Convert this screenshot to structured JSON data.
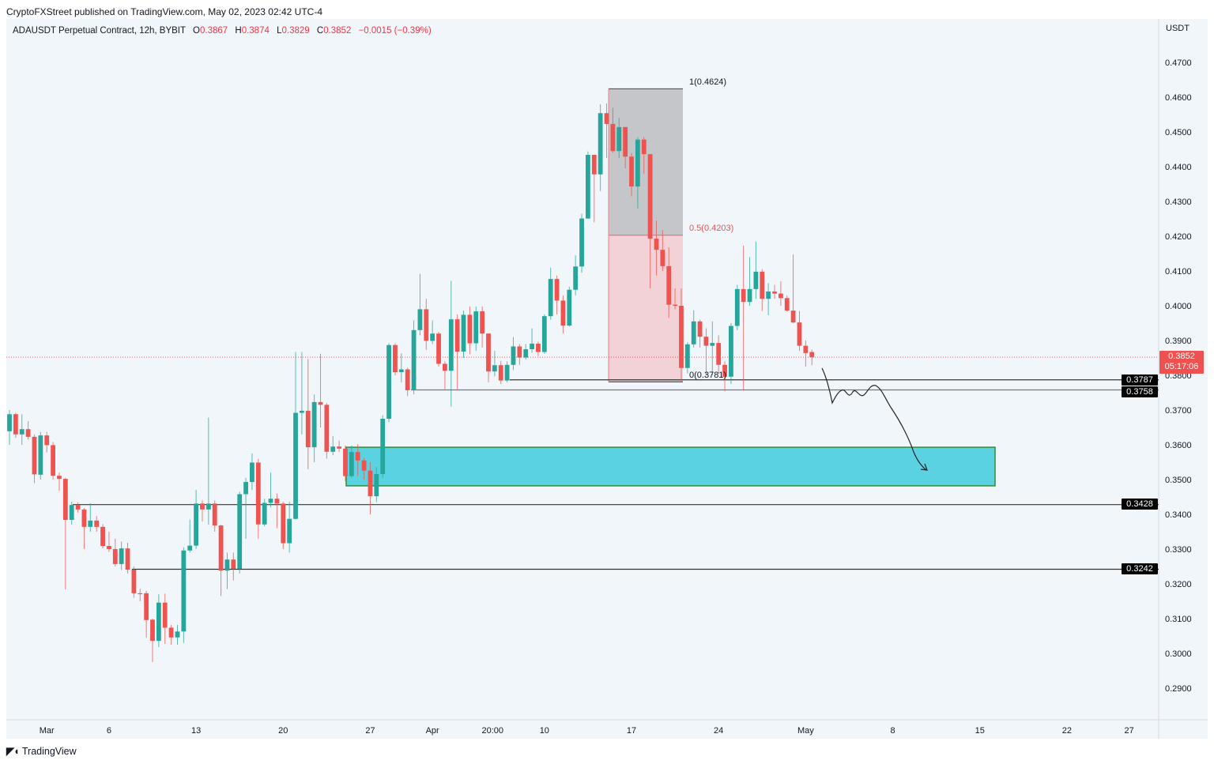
{
  "header": {
    "published": "CryptoFXStreet published on TradingView.com, May 02, 2023 02:42 UTC-4",
    "symbol": "ADAUSDT Perpetual Contract, 12h, BYBIT",
    "o_label": "O",
    "o": "0.3867",
    "h_label": "H",
    "h": "0.3874",
    "l_label": "L",
    "l": "0.3829",
    "c_label": "C",
    "c": "0.3852",
    "change": "−0.0015 (−0.39%)"
  },
  "price_axis": {
    "currency": "USDT",
    "last_price": "0.3852",
    "countdown": "05:17:06",
    "level_tags": [
      "0.3787",
      "0.3758",
      "0.3428",
      "0.3242"
    ]
  },
  "fib": {
    "level_1": "1(0.4624)",
    "level_05": "0.5(0.4203)",
    "level_0": "0(0.3781)"
  },
  "branding": {
    "logo_text": "TradingView"
  },
  "colors": {
    "up": "#26a69a",
    "down": "#ef5350",
    "zone_fill": "#5ad2e1",
    "zone_border": "#2f8f3a",
    "fib_upper": "#c4c6c9",
    "fib_lower": "#f2d1d7",
    "last_price": "#f0504f"
  },
  "chart_data": {
    "type": "candlestick",
    "interval": "12h",
    "ylim": [
      0.285,
      0.475
    ],
    "y_ticks": [
      "0.4700",
      "0.4600",
      "0.4500",
      "0.4400",
      "0.4300",
      "0.4200",
      "0.4100",
      "0.4000",
      "0.3900",
      "0.3800",
      "0.3700",
      "0.3600",
      "0.3500",
      "0.3400",
      "0.3300",
      "0.3200",
      "0.3100",
      "0.3000",
      "0.2900"
    ],
    "x_ticks": [
      {
        "label": "Mar",
        "date": "2023-03-01T00:00"
      },
      {
        "label": "6",
        "date": "2023-03-06T00:00"
      },
      {
        "label": "13",
        "date": "2023-03-13T00:00"
      },
      {
        "label": "20",
        "date": "2023-03-20T00:00"
      },
      {
        "label": "27",
        "date": "2023-03-27T00:00"
      },
      {
        "label": "Apr",
        "date": "2023-04-01T00:00"
      },
      {
        "label": "20:00",
        "date": "2023-04-05T20:00"
      },
      {
        "label": "10",
        "date": "2023-04-10T00:00"
      },
      {
        "label": "17",
        "date": "2023-04-17T00:00"
      },
      {
        "label": "24",
        "date": "2023-04-24T00:00"
      },
      {
        "label": "May",
        "date": "2023-05-01T00:00"
      },
      {
        "label": "8",
        "date": "2023-05-08T00:00"
      },
      {
        "label": "15",
        "date": "2023-05-15T00:00"
      },
      {
        "label": "22",
        "date": "2023-05-22T00:00"
      },
      {
        "label": "27",
        "date": "2023-05-27T00:00"
      }
    ],
    "ohlc": [
      [
        0.3639,
        0.37,
        0.36,
        0.3688
      ],
      [
        0.3688,
        0.3692,
        0.362,
        0.363
      ],
      [
        0.363,
        0.3688,
        0.36,
        0.3645
      ],
      [
        0.3645,
        0.3668,
        0.3615,
        0.3623
      ],
      [
        0.3623,
        0.363,
        0.349,
        0.3515
      ],
      [
        0.3514,
        0.3637,
        0.35,
        0.3627
      ],
      [
        0.3627,
        0.3637,
        0.3578,
        0.3599
      ],
      [
        0.3599,
        0.3608,
        0.35,
        0.3511
      ],
      [
        0.3511,
        0.352,
        0.3468,
        0.3502
      ],
      [
        0.3502,
        0.3505,
        0.3184,
        0.3384
      ],
      [
        0.3384,
        0.3436,
        0.337,
        0.3427
      ],
      [
        0.3427,
        0.3435,
        0.3405,
        0.3414
      ],
      [
        0.3414,
        0.3418,
        0.33,
        0.3364
      ],
      [
        0.3364,
        0.3432,
        0.335,
        0.3382
      ],
      [
        0.3382,
        0.3395,
        0.335,
        0.3364
      ],
      [
        0.3364,
        0.3372,
        0.3302,
        0.3309
      ],
      [
        0.3309,
        0.335,
        0.3292,
        0.33
      ],
      [
        0.33,
        0.333,
        0.325,
        0.3257
      ],
      [
        0.3257,
        0.3322,
        0.324,
        0.3302
      ],
      [
        0.3302,
        0.3318,
        0.323,
        0.3241
      ],
      [
        0.3241,
        0.325,
        0.316,
        0.3173
      ],
      [
        0.3173,
        0.3186,
        0.315,
        0.3172
      ],
      [
        0.3173,
        0.318,
        0.3045,
        0.3096
      ],
      [
        0.3097,
        0.31,
        0.2975,
        0.3036
      ],
      [
        0.3036,
        0.317,
        0.3018,
        0.3146
      ],
      [
        0.3146,
        0.3172,
        0.3027,
        0.3074
      ],
      [
        0.3074,
        0.3082,
        0.3025,
        0.3046
      ],
      [
        0.3046,
        0.3082,
        0.3025,
        0.3063
      ],
      [
        0.3063,
        0.3305,
        0.303,
        0.3296
      ],
      [
        0.3296,
        0.3385,
        0.329,
        0.331
      ],
      [
        0.331,
        0.347,
        0.33,
        0.3431
      ],
      [
        0.3431,
        0.344,
        0.338,
        0.3414
      ],
      [
        0.3414,
        0.3678,
        0.337,
        0.3431
      ],
      [
        0.3431,
        0.344,
        0.335,
        0.3368
      ],
      [
        0.3368,
        0.337,
        0.3165,
        0.3238
      ],
      [
        0.3238,
        0.329,
        0.3185,
        0.327
      ],
      [
        0.327,
        0.329,
        0.321,
        0.3243
      ],
      [
        0.3243,
        0.3465,
        0.323,
        0.3458
      ],
      [
        0.3458,
        0.3505,
        0.333,
        0.3493
      ],
      [
        0.3493,
        0.3575,
        0.347,
        0.3549
      ],
      [
        0.3549,
        0.356,
        0.333,
        0.3371
      ],
      [
        0.3371,
        0.3445,
        0.3365,
        0.3433
      ],
      [
        0.3433,
        0.352,
        0.342,
        0.3445
      ],
      [
        0.3445,
        0.346,
        0.336,
        0.3431
      ],
      [
        0.3431,
        0.3436,
        0.33,
        0.3317
      ],
      [
        0.3317,
        0.3436,
        0.329,
        0.3387
      ],
      [
        0.3387,
        0.3867,
        0.3385,
        0.3692
      ],
      [
        0.3692,
        0.3867,
        0.363,
        0.3698
      ],
      [
        0.3698,
        0.3847,
        0.353,
        0.3593
      ],
      [
        0.3593,
        0.3745,
        0.355,
        0.3723
      ],
      [
        0.3723,
        0.3862,
        0.365,
        0.3715
      ],
      [
        0.3715,
        0.372,
        0.356,
        0.358
      ],
      [
        0.358,
        0.3625,
        0.357,
        0.3595
      ],
      [
        0.3595,
        0.3612,
        0.358,
        0.3589
      ],
      [
        0.3589,
        0.3598,
        0.3495,
        0.351
      ],
      [
        0.351,
        0.3598,
        0.3505,
        0.3579
      ],
      [
        0.3579,
        0.3602,
        0.351,
        0.3555
      ],
      [
        0.3555,
        0.3562,
        0.35,
        0.3526
      ],
      [
        0.3526,
        0.355,
        0.34,
        0.3452
      ],
      [
        0.3452,
        0.3536,
        0.3435,
        0.3516
      ],
      [
        0.3516,
        0.3685,
        0.3505,
        0.3675
      ],
      [
        0.3675,
        0.3892,
        0.3665,
        0.3887
      ],
      [
        0.3887,
        0.3892,
        0.38,
        0.3809
      ],
      [
        0.3809,
        0.3863,
        0.378,
        0.3817
      ],
      [
        0.3817,
        0.3822,
        0.374,
        0.3757
      ],
      [
        0.3757,
        0.3958,
        0.3745,
        0.393
      ],
      [
        0.393,
        0.4092,
        0.3915,
        0.399
      ],
      [
        0.399,
        0.402,
        0.3873,
        0.3899
      ],
      [
        0.3899,
        0.3958,
        0.389,
        0.392
      ],
      [
        0.392,
        0.3925,
        0.3825,
        0.3833
      ],
      [
        0.3833,
        0.384,
        0.376,
        0.3813
      ],
      [
        0.3813,
        0.4072,
        0.371,
        0.3961
      ],
      [
        0.3961,
        0.3975,
        0.376,
        0.3868
      ],
      [
        0.3868,
        0.3986,
        0.385,
        0.3974
      ],
      [
        0.3974,
        0.3998,
        0.386,
        0.3892
      ],
      [
        0.3892,
        0.3998,
        0.387,
        0.3984
      ],
      [
        0.3984,
        0.3998,
        0.388,
        0.392
      ],
      [
        0.392,
        0.392,
        0.378,
        0.3811
      ],
      [
        0.3811,
        0.387,
        0.3797,
        0.3829
      ],
      [
        0.3829,
        0.3841,
        0.3775,
        0.3785
      ],
      [
        0.3785,
        0.384,
        0.378,
        0.383
      ],
      [
        0.383,
        0.391,
        0.3815,
        0.3883
      ],
      [
        0.3883,
        0.389,
        0.383,
        0.3851
      ],
      [
        0.3851,
        0.389,
        0.3845,
        0.3875
      ],
      [
        0.3875,
        0.3935,
        0.3865,
        0.3891
      ],
      [
        0.3891,
        0.3897,
        0.3855,
        0.3867
      ],
      [
        0.3867,
        0.3975,
        0.3862,
        0.397
      ],
      [
        0.397,
        0.411,
        0.396,
        0.4077
      ],
      [
        0.4077,
        0.4087,
        0.3975,
        0.4015
      ],
      [
        0.4015,
        0.403,
        0.392,
        0.3943
      ],
      [
        0.3943,
        0.4055,
        0.394,
        0.4046
      ],
      [
        0.4046,
        0.4145,
        0.403,
        0.4113
      ],
      [
        0.4113,
        0.4265,
        0.4095,
        0.4251
      ],
      [
        0.4251,
        0.4444,
        0.425,
        0.4434
      ],
      [
        0.4434,
        0.4434,
        0.424,
        0.4378
      ],
      [
        0.4378,
        0.458,
        0.433,
        0.4554
      ],
      [
        0.4554,
        0.4582,
        0.4425,
        0.4523
      ],
      [
        0.4523,
        0.457,
        0.444,
        0.4445
      ],
      [
        0.4445,
        0.454,
        0.4425,
        0.4514
      ],
      [
        0.4514,
        0.4514,
        0.4395,
        0.4429
      ],
      [
        0.4429,
        0.444,
        0.4315,
        0.4343
      ],
      [
        0.4343,
        0.4485,
        0.428,
        0.4478
      ],
      [
        0.4478,
        0.4485,
        0.438,
        0.4436
      ],
      [
        0.4436,
        0.4436,
        0.405,
        0.4193
      ],
      [
        0.4193,
        0.4245,
        0.4087,
        0.4161
      ],
      [
        0.4161,
        0.4218,
        0.41,
        0.4114
      ],
      [
        0.4114,
        0.4168,
        0.3965,
        0.4003
      ],
      [
        0.4003,
        0.405,
        0.399,
        0.4
      ],
      [
        0.4,
        0.405,
        0.3781,
        0.3821
      ],
      [
        0.3821,
        0.3895,
        0.3805,
        0.3889
      ],
      [
        0.3889,
        0.3987,
        0.388,
        0.3955
      ],
      [
        0.3955,
        0.396,
        0.388,
        0.3911
      ],
      [
        0.3911,
        0.3935,
        0.38,
        0.3885
      ],
      [
        0.3885,
        0.3955,
        0.38,
        0.3893
      ],
      [
        0.3893,
        0.3915,
        0.3805,
        0.383
      ],
      [
        0.383,
        0.384,
        0.3754,
        0.3796
      ],
      [
        0.3796,
        0.395,
        0.3775,
        0.3942
      ],
      [
        0.3942,
        0.406,
        0.393,
        0.4048
      ],
      [
        0.4048,
        0.4173,
        0.3758,
        0.4011
      ],
      [
        0.4011,
        0.414,
        0.4,
        0.4048
      ],
      [
        0.4048,
        0.4185,
        0.402,
        0.4098
      ],
      [
        0.4098,
        0.4105,
        0.3985,
        0.402
      ],
      [
        0.402,
        0.4065,
        0.3973,
        0.4041
      ],
      [
        0.4041,
        0.406,
        0.402,
        0.4035
      ],
      [
        0.4035,
        0.407,
        0.4,
        0.4022
      ],
      [
        0.4022,
        0.403,
        0.3983,
        0.3986
      ],
      [
        0.3986,
        0.4148,
        0.395,
        0.3952
      ],
      [
        0.3952,
        0.3985,
        0.387,
        0.3885
      ],
      [
        0.3885,
        0.39,
        0.3825,
        0.3864
      ],
      [
        0.3867,
        0.3874,
        0.3829,
        0.3852
      ]
    ],
    "horizontal_levels": [
      0.3787,
      0.3758,
      0.3428,
      0.3242
    ],
    "fib_retracement": {
      "high": 0.4624,
      "mid": 0.4203,
      "low": 0.3781
    },
    "demand_zone": {
      "top": 0.3593,
      "bottom": 0.3482
    },
    "last_price": 0.3852
  }
}
